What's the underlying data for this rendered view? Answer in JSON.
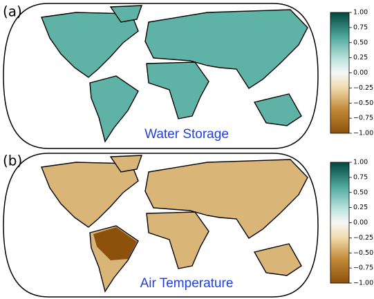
{
  "panels": [
    {
      "label": "(a)",
      "title": "Water Storage",
      "colorbar": {
        "range": [
          -1,
          1
        ],
        "ticks": [
          {
            "value": 1,
            "label": "1.00"
          },
          {
            "value": 0.75,
            "label": "0.75"
          },
          {
            "value": 0.5,
            "label": "0.50"
          },
          {
            "value": 0.25,
            "label": "0.25"
          },
          {
            "value": 0,
            "label": "0.00"
          },
          {
            "value": -0.25,
            "label": "−0.25"
          },
          {
            "value": -0.5,
            "label": "−0.50"
          },
          {
            "value": -0.75,
            "label": "−0.75"
          },
          {
            "value": -1,
            "label": "−1.00"
          }
        ]
      }
    },
    {
      "label": "(b)",
      "title": "Air Temperature",
      "colorbar": {
        "range": [
          -1,
          1
        ],
        "ticks": [
          {
            "value": 1,
            "label": "1.00"
          },
          {
            "value": 0.75,
            "label": "0.75"
          },
          {
            "value": 0.5,
            "label": "0.50"
          },
          {
            "value": 0.25,
            "label": "0.25"
          },
          {
            "value": 0,
            "label": "0.00"
          },
          {
            "value": -0.25,
            "label": "−0.25"
          },
          {
            "value": -0.5,
            "label": "−0.50"
          },
          {
            "value": -0.75,
            "label": "−0.75"
          },
          {
            "value": -1,
            "label": "−1.00"
          }
        ]
      }
    }
  ]
}
